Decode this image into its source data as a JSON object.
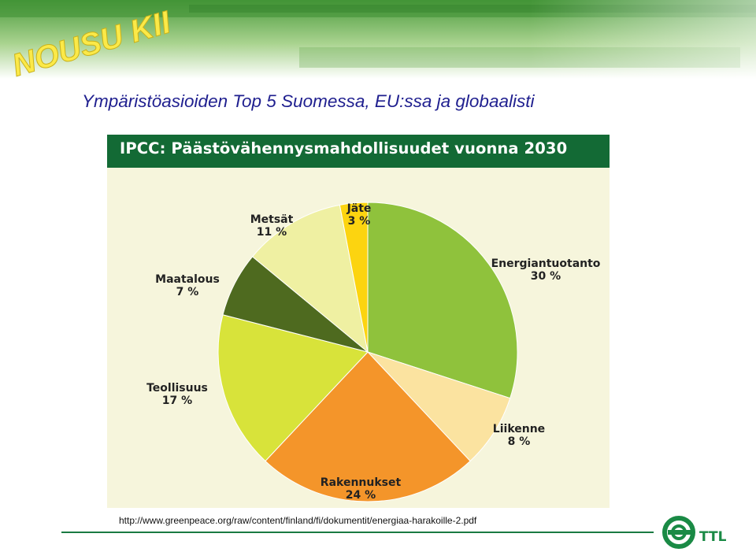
{
  "banner": {
    "logo_text": "NOUSU KIIDOSSA"
  },
  "slide": {
    "title": "Ympäristöasioiden Top 5 Suomessa, EU:ssa ja globaalisti"
  },
  "chart_data": {
    "type": "pie",
    "title": "IPCC: Päästövähennysmahdollisuudet vuonna 2030",
    "categories": [
      "Energiantuotanto",
      "Liikenne",
      "Rakennukset",
      "Teollisuus",
      "Maatalous",
      "Metsät",
      "Jäte"
    ],
    "values": [
      30,
      8,
      24,
      17,
      7,
      11,
      3
    ],
    "value_labels": [
      "30 %",
      "8 %",
      "24 %",
      "17 %",
      "7 %",
      "11 %",
      "3 %"
    ],
    "colors": [
      "#8fc23c",
      "#fbe3a0",
      "#f4952a",
      "#d8e33a",
      "#4e6a1f",
      "#eff0a2",
      "#fcd410"
    ]
  },
  "source": {
    "url": "http://www.greenpeace.org/raw/content/finland/fi/dokumentit/energiaa-harakoille-2.pdf"
  },
  "footer": {
    "logo_text": "TTL"
  },
  "colors": {
    "title": "#1f1f8f",
    "header": "#136a35",
    "panel": "#f6f5dc",
    "footer_line": "#1a7a42"
  }
}
